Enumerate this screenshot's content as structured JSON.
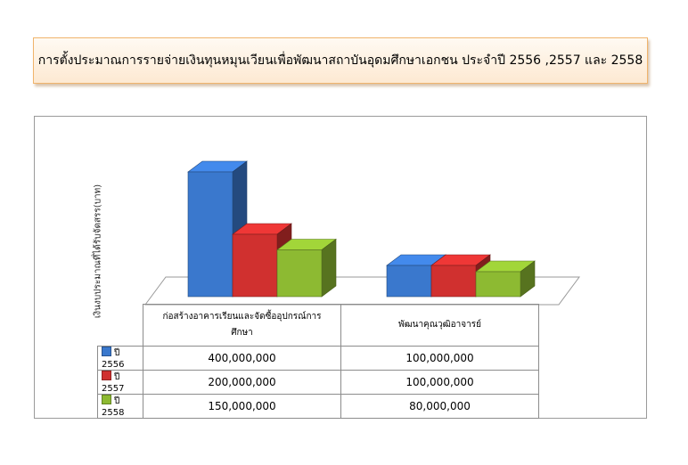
{
  "title": "การตั้งประมาณการรายจ่ายเงินทุนหมุนเวียนเพื่อพัฒนาสถาบันอุดมศึกษาเอกชน ประจำปี 2556 ,2557 และ 2558",
  "chart_data": {
    "type": "bar",
    "ylabel": "เงินงบประมาณที่ได้รับจัดสรร(บาท)",
    "categories": [
      "ก่อสร้างอาคารเรียนและจัดซื้ออุปกรณ์การศึกษา",
      "พัฒนาคุณวุฒิอาจารย์"
    ],
    "series": [
      {
        "name": "ปี 2556",
        "color": "#3a78cd",
        "values": [
          400000000,
          100000000
        ],
        "labels": [
          "400,000,000",
          "100,000,000"
        ]
      },
      {
        "name": "ปี 2557",
        "color": "#d0302f",
        "values": [
          200000000,
          100000000
        ],
        "labels": [
          "200,000,000",
          "100,000,000"
        ]
      },
      {
        "name": "ปี 2558",
        "color": "#8dba32",
        "values": [
          150000000,
          80000000
        ],
        "labels": [
          "150,000,000",
          "80,000,000"
        ]
      }
    ],
    "ylim": [
      0,
      400000000
    ],
    "legend": "table-left"
  }
}
